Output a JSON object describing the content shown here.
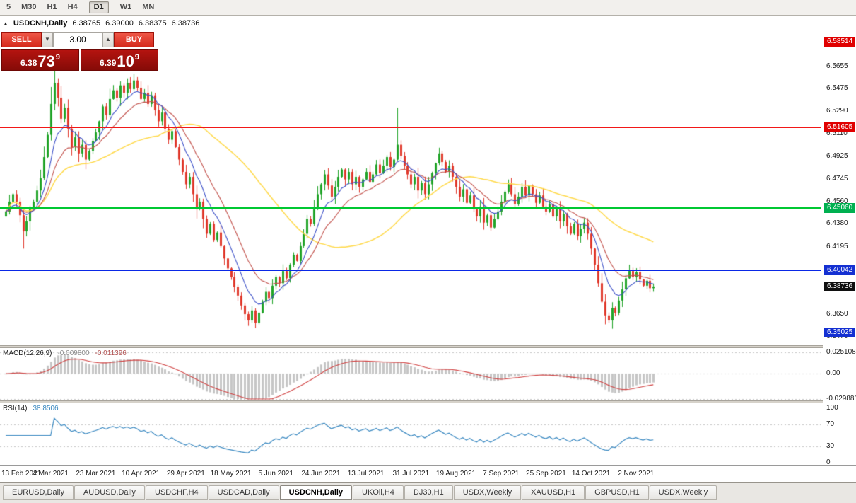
{
  "toolbar": {
    "timeframes": [
      "5",
      "M30",
      "H1",
      "H4",
      "D1",
      "W1",
      "MN"
    ],
    "active": "D1"
  },
  "chart_header": {
    "collapse_icon": "▲",
    "symbol": "USDCNH,Daily",
    "open": "6.38765",
    "high": "6.39000",
    "low": "6.38375",
    "close": "6.38736"
  },
  "trade_panel": {
    "sell_label": "SELL",
    "buy_label": "BUY",
    "volume": "3.00",
    "sell_price": {
      "base": "6.38",
      "pips": "73",
      "point": "9"
    },
    "buy_price": {
      "base": "6.39",
      "pips": "10",
      "point": "9"
    }
  },
  "price_axis": {
    "labels": [
      {
        "text": "6.5655",
        "price": 6.5655
      },
      {
        "text": "6.5475",
        "price": 6.5475
      },
      {
        "text": "6.5290",
        "price": 6.529
      },
      {
        "text": "6.5110",
        "price": 6.511
      },
      {
        "text": "6.4925",
        "price": 6.4925
      },
      {
        "text": "6.4745",
        "price": 6.4745
      },
      {
        "text": "6.4560",
        "price": 6.456
      },
      {
        "text": "6.4380",
        "price": 6.438
      },
      {
        "text": "6.4195",
        "price": 6.4195
      },
      {
        "text": "6.3650",
        "price": 6.365
      },
      {
        "text": "6.3470",
        "price": 6.347
      }
    ],
    "badges": [
      {
        "text": "6.58514",
        "price": 6.58514,
        "bg": "#e00000"
      },
      {
        "text": "6.51605",
        "price": 6.51605,
        "bg": "#e00000"
      },
      {
        "text": "6.45060",
        "price": 6.4506,
        "bg": "#00b050"
      },
      {
        "text": "6.40042",
        "price": 6.40042,
        "bg": "#1430d2"
      },
      {
        "text": "6.38736",
        "price": 6.38736,
        "bg": "#101010"
      },
      {
        "text": "6.35025",
        "price": 6.35025,
        "bg": "#1430d2"
      }
    ]
  },
  "macd": {
    "label": "MACD(12,26,9)",
    "value_main": "-0.009800",
    "value_signal": "-0.011396",
    "axis": [
      {
        "text": "0.025108",
        "value": 0.025108
      },
      {
        "text": "0.00",
        "value": 0
      },
      {
        "text": "-0.029881",
        "value": -0.029881
      }
    ]
  },
  "rsi": {
    "label": "RSI(14)",
    "value": "38.8506",
    "axis": [
      {
        "text": "100",
        "value": 100
      },
      {
        "text": "70",
        "value": 70
      },
      {
        "text": "30",
        "value": 30
      },
      {
        "text": "0",
        "value": 0
      }
    ]
  },
  "tabs": [
    {
      "label": "EURUSD,Daily"
    },
    {
      "label": "AUDUSD,Daily"
    },
    {
      "label": "USDCHF,H4"
    },
    {
      "label": "USDCAD,Daily"
    },
    {
      "label": "USDCNH,Daily",
      "active": true
    },
    {
      "label": "UKOil,H4"
    },
    {
      "label": "DJ30,H1"
    },
    {
      "label": "USDX,Weekly"
    },
    {
      "label": "XAUUSD,H1"
    },
    {
      "label": "GBPUSD,H1"
    },
    {
      "label": "USDX,Weekly"
    }
  ],
  "chart_data": {
    "type": "candlestick",
    "symbol": "USDCNH",
    "timeframe": "Daily",
    "y_range": [
      6.345,
      6.591
    ],
    "current_price": 6.38736,
    "dates": [
      "13 Feb 2021",
      "4 Mar 2021",
      "23 Mar 2021",
      "10 Apr 2021",
      "29 Apr 2021",
      "18 May 2021",
      "5 Jun 2021",
      "24 Jun 2021",
      "13 Jul 2021",
      "31 Jul 2021",
      "19 Aug 2021",
      "7 Sep 2021",
      "25 Sep 2021",
      "14 Oct 2021",
      "2 Nov 2021"
    ],
    "closes": [
      6.448,
      6.456,
      6.462,
      6.456,
      6.445,
      6.432,
      6.44,
      6.451,
      6.456,
      6.465,
      6.475,
      6.492,
      6.51,
      6.535,
      6.552,
      6.54,
      6.523,
      6.532,
      6.515,
      6.5,
      6.508,
      6.495,
      6.502,
      6.49,
      6.497,
      6.505,
      6.512,
      6.521,
      6.533,
      6.526,
      6.539,
      6.546,
      6.54,
      6.55,
      6.544,
      6.552,
      6.547,
      6.554,
      6.548,
      6.539,
      6.544,
      6.535,
      6.542,
      6.53,
      6.521,
      6.528,
      6.515,
      6.506,
      6.513,
      6.5,
      6.49,
      6.48,
      6.47,
      6.476,
      6.462,
      6.45,
      6.456,
      6.442,
      6.43,
      6.438,
      6.425,
      6.431,
      6.42,
      6.41,
      6.402,
      6.395,
      6.387,
      6.38,
      6.372,
      6.365,
      6.36,
      6.368,
      6.358,
      6.366,
      6.375,
      6.383,
      6.378,
      6.388,
      6.395,
      6.39,
      6.4,
      6.394,
      6.405,
      6.413,
      6.408,
      6.42,
      6.43,
      6.442,
      6.438,
      6.45,
      6.462,
      6.47,
      6.478,
      6.469,
      6.46,
      6.468,
      6.476,
      6.482,
      6.474,
      6.48,
      6.47,
      6.476,
      6.468,
      6.474,
      6.48,
      6.472,
      6.478,
      6.486,
      6.479,
      6.485,
      6.492,
      6.484,
      6.49,
      6.502,
      6.493,
      6.485,
      6.478,
      6.47,
      6.476,
      6.465,
      6.471,
      6.462,
      6.47,
      6.479,
      6.487,
      6.495,
      6.488,
      6.48,
      6.485,
      6.476,
      6.468,
      6.46,
      6.466,
      6.455,
      6.461,
      6.45,
      6.444,
      6.452,
      6.439,
      6.445,
      6.435,
      6.442,
      6.448,
      6.456,
      6.464,
      6.47,
      6.462,
      6.454,
      6.46,
      6.468,
      6.461,
      6.469,
      6.462,
      6.455,
      6.461,
      6.452,
      6.448,
      6.454,
      6.444,
      6.45,
      6.44,
      6.446,
      6.436,
      6.43,
      6.438,
      6.428,
      6.434,
      6.439,
      6.43,
      6.418,
      6.405,
      6.39,
      6.375,
      6.364,
      6.36,
      6.37,
      6.366,
      6.376,
      6.385,
      6.394,
      6.4,
      6.395,
      6.399,
      6.393,
      6.388,
      6.392,
      6.386,
      6.38736
    ],
    "wick_overrides": {
      "5": {
        "low": 6.418
      },
      "14": {
        "high": 6.5655
      },
      "37": {
        "high": 6.559
      },
      "72": {
        "low": 6.356
      },
      "113": {
        "high": 6.532
      },
      "174": {
        "low": 6.358
      }
    },
    "hlines": [
      {
        "price": 6.58514,
        "color": "#f21818",
        "width": 1
      },
      {
        "price": 6.51605,
        "color": "#f21818",
        "width": 1
      },
      {
        "price": 6.4506,
        "color": "#00c832",
        "width": 2
      },
      {
        "price": 6.40042,
        "color": "#0a28e6",
        "width": 2
      },
      {
        "price": 6.35025,
        "color": "#0a28c0",
        "width": 1
      }
    ],
    "colors": {
      "up": "#22a42a",
      "down": "#e0392c",
      "ma_fast": "#3c50c8",
      "ma_mid": "#c2514b",
      "ma_slow": "#ffd94a",
      "macd_hist": "#c6c6c6",
      "macd_signal": "#d04040",
      "rsi": "#3787c0"
    }
  }
}
